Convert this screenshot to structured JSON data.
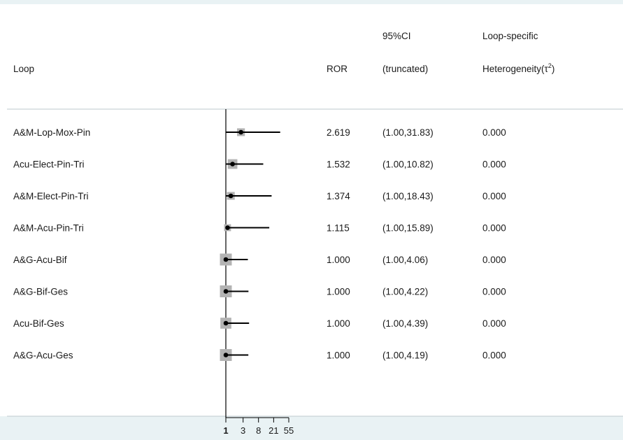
{
  "colors": {
    "background": "#ffffff",
    "footer_band": "#e9f2f4",
    "box": "#b3b3b3",
    "line": "#000000",
    "separator": "#c9d3d6"
  },
  "header": {
    "loop": "Loop",
    "ror": "ROR",
    "ci_line1": "95%CI",
    "ci_line2": "(truncated)",
    "het_line1": "Loop-specific",
    "het_line2": "Heterogeneity(τ",
    "het_sup": "2",
    "het_close": ")"
  },
  "chart_data": {
    "type": "forest",
    "scale": "log",
    "reference_line": 1,
    "x_ticks": [
      1,
      3,
      8,
      21,
      55
    ],
    "x_tick_labels": [
      "1",
      "3",
      "8",
      "21",
      "55"
    ],
    "rows": [
      {
        "loop": "A&M-Lop-Mox-Pin",
        "ror": 2.619,
        "lo": 1.0,
        "hi": 31.83,
        "ror_text": "2.619",
        "ci_text": "(1.00,31.83)",
        "het_text": "0.000",
        "weight": 0.55
      },
      {
        "loop": "Acu-Elect-Pin-Tri",
        "ror": 1.532,
        "lo": 1.0,
        "hi": 10.82,
        "ror_text": "1.532",
        "ci_text": "(1.00,10.82)",
        "het_text": "0.000",
        "weight": 0.75
      },
      {
        "loop": "A&M-Elect-Pin-Tri",
        "ror": 1.374,
        "lo": 1.0,
        "hi": 18.43,
        "ror_text": "1.374",
        "ci_text": "(1.00,18.43)",
        "het_text": "0.000",
        "weight": 0.55
      },
      {
        "loop": "A&M-Acu-Pin-Tri",
        "ror": 1.115,
        "lo": 1.0,
        "hi": 15.89,
        "ror_text": "1.115",
        "ci_text": "(1.00,15.89)",
        "het_text": "0.000",
        "weight": 0.45
      },
      {
        "loop": "A&G-Acu-Bif",
        "ror": 1.0,
        "lo": 1.0,
        "hi": 4.06,
        "ror_text": "1.000",
        "ci_text": "(1.00,4.06)",
        "het_text": "0.000",
        "weight": 1.0
      },
      {
        "loop": "A&G-Bif-Ges",
        "ror": 1.0,
        "lo": 1.0,
        "hi": 4.22,
        "ror_text": "1.000",
        "ci_text": "(1.00,4.22)",
        "het_text": "0.000",
        "weight": 1.0
      },
      {
        "loop": "Acu-Bif-Ges",
        "ror": 1.0,
        "lo": 1.0,
        "hi": 4.39,
        "ror_text": "1.000",
        "ci_text": "(1.00,4.39)",
        "het_text": "0.000",
        "weight": 0.9
      },
      {
        "loop": "A&G-Acu-Ges",
        "ror": 1.0,
        "lo": 1.0,
        "hi": 4.19,
        "ror_text": "1.000",
        "ci_text": "(1.00,4.19)",
        "het_text": "0.000",
        "weight": 1.0
      }
    ]
  }
}
